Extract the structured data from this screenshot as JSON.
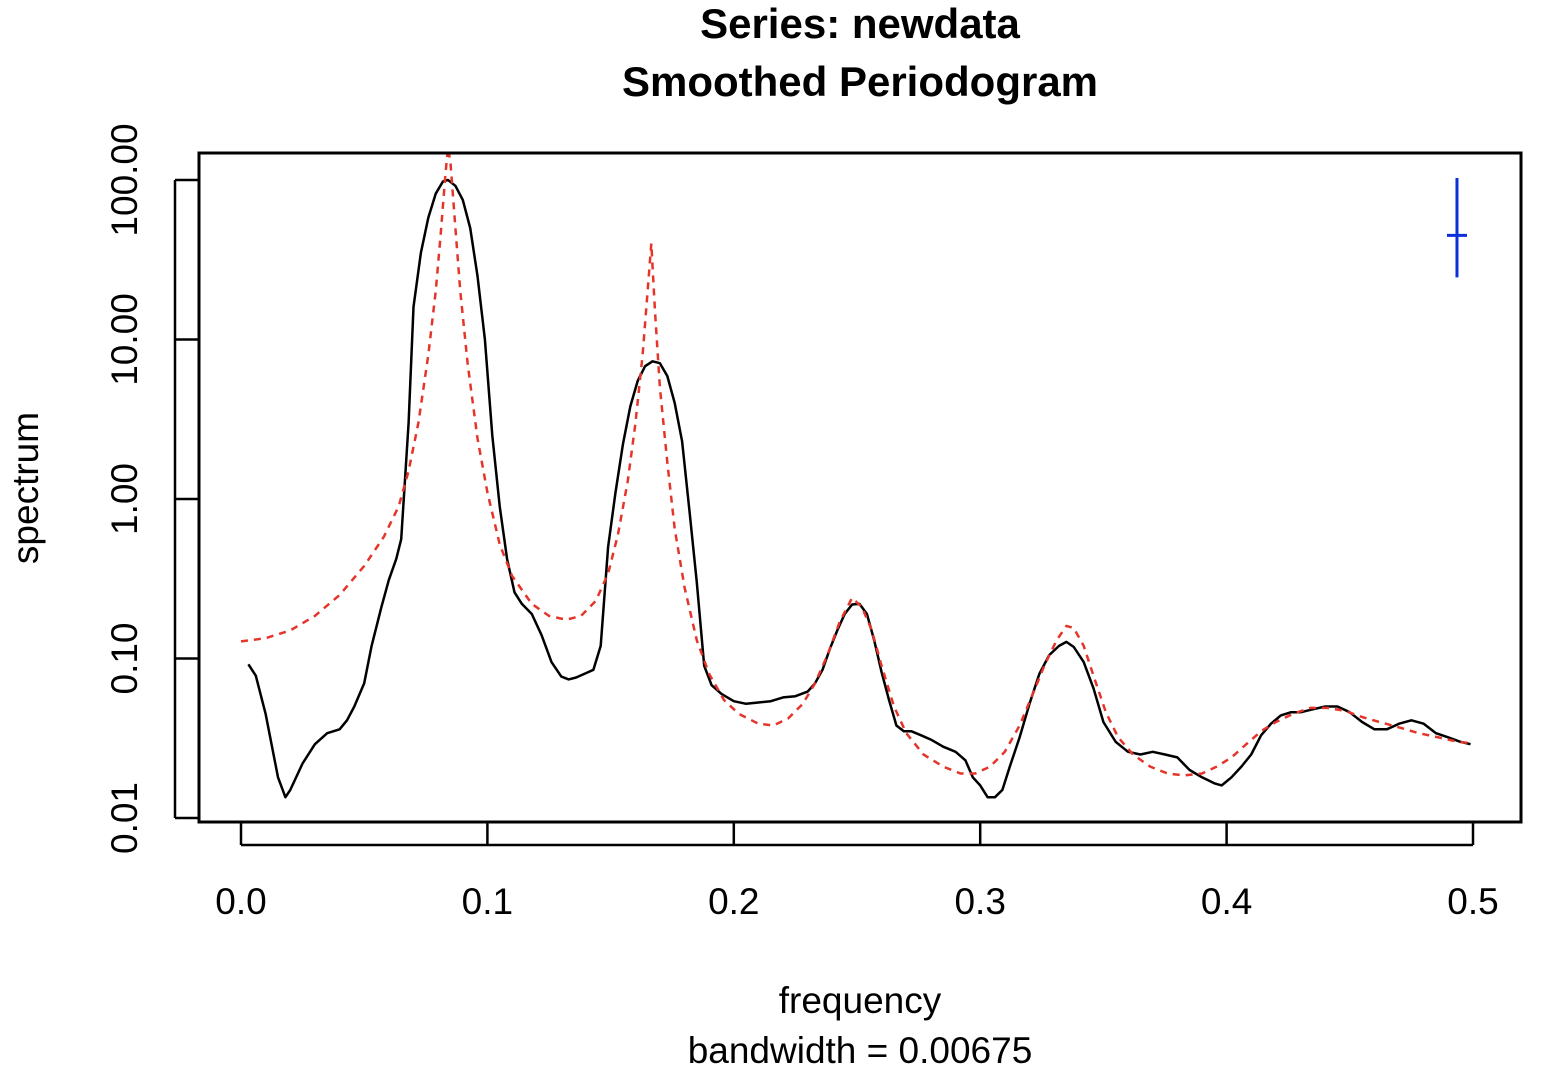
{
  "chart_data": {
    "type": "line",
    "title": "Series: newdata",
    "subtitle": "Smoothed Periodogram",
    "xlabel": "frequency",
    "sub": "bandwidth = 0.00675",
    "ylabel": "spectrum",
    "y_scale": "log10",
    "xlim": [
      0,
      0.5
    ],
    "ylim": [
      0.01,
      100
    ],
    "x_ticks": [
      {
        "value": 0.0,
        "label": "0.0"
      },
      {
        "value": 0.1,
        "label": "0.1"
      },
      {
        "value": 0.2,
        "label": "0.2"
      },
      {
        "value": 0.3,
        "label": "0.3"
      },
      {
        "value": 0.4,
        "label": "0.4"
      },
      {
        "value": 0.5,
        "label": "0.5"
      }
    ],
    "y_ticks": [
      {
        "value": 0.01,
        "label": "0.01"
      },
      {
        "value": 0.1,
        "label": "0.10"
      },
      {
        "value": 1,
        "label": "1.00"
      },
      {
        "value": 10,
        "label": "10.00"
      },
      {
        "value": 100,
        "label": "100.00"
      }
    ],
    "series": [
      {
        "style": "solid",
        "color": "#000000",
        "points": [
          [
            0.003,
            0.092
          ],
          [
            0.006,
            0.078
          ],
          [
            0.01,
            0.045
          ],
          [
            0.015,
            0.018
          ],
          [
            0.018,
            0.0135
          ],
          [
            0.02,
            0.015
          ],
          [
            0.025,
            0.022
          ],
          [
            0.03,
            0.029
          ],
          [
            0.035,
            0.034
          ],
          [
            0.04,
            0.036
          ],
          [
            0.043,
            0.041
          ],
          [
            0.046,
            0.05
          ],
          [
            0.05,
            0.07
          ],
          [
            0.053,
            0.12
          ],
          [
            0.057,
            0.21
          ],
          [
            0.06,
            0.31
          ],
          [
            0.063,
            0.42
          ],
          [
            0.065,
            0.56
          ],
          [
            0.068,
            3.0
          ],
          [
            0.07,
            16.0
          ],
          [
            0.073,
            35.0
          ],
          [
            0.076,
            58.0
          ],
          [
            0.079,
            82.0
          ],
          [
            0.082,
            98.0
          ],
          [
            0.084,
            100.0
          ],
          [
            0.087,
            92.0
          ],
          [
            0.09,
            75.0
          ],
          [
            0.093,
            50.0
          ],
          [
            0.096,
            25.0
          ],
          [
            0.099,
            10.0
          ],
          [
            0.102,
            2.5
          ],
          [
            0.105,
            0.9
          ],
          [
            0.108,
            0.42
          ],
          [
            0.111,
            0.26
          ],
          [
            0.114,
            0.22
          ],
          [
            0.118,
            0.19
          ],
          [
            0.122,
            0.14
          ],
          [
            0.126,
            0.095
          ],
          [
            0.13,
            0.077
          ],
          [
            0.133,
            0.074
          ],
          [
            0.136,
            0.076
          ],
          [
            0.14,
            0.081
          ],
          [
            0.143,
            0.085
          ],
          [
            0.146,
            0.12
          ],
          [
            0.149,
            0.5
          ],
          [
            0.152,
            1.1
          ],
          [
            0.155,
            2.2
          ],
          [
            0.158,
            3.8
          ],
          [
            0.161,
            5.5
          ],
          [
            0.164,
            6.8
          ],
          [
            0.167,
            7.3
          ],
          [
            0.17,
            7.1
          ],
          [
            0.173,
            5.9
          ],
          [
            0.176,
            4.0
          ],
          [
            0.179,
            2.3
          ],
          [
            0.182,
            0.85
          ],
          [
            0.185,
            0.3
          ],
          [
            0.188,
            0.09
          ],
          [
            0.191,
            0.068
          ],
          [
            0.195,
            0.06
          ],
          [
            0.2,
            0.054
          ],
          [
            0.205,
            0.052
          ],
          [
            0.21,
            0.053
          ],
          [
            0.215,
            0.054
          ],
          [
            0.22,
            0.057
          ],
          [
            0.225,
            0.058
          ],
          [
            0.23,
            0.062
          ],
          [
            0.233,
            0.07
          ],
          [
            0.236,
            0.085
          ],
          [
            0.239,
            0.115
          ],
          [
            0.242,
            0.15
          ],
          [
            0.245,
            0.19
          ],
          [
            0.248,
            0.218
          ],
          [
            0.251,
            0.22
          ],
          [
            0.254,
            0.19
          ],
          [
            0.257,
            0.13
          ],
          [
            0.26,
            0.082
          ],
          [
            0.263,
            0.055
          ],
          [
            0.266,
            0.038
          ],
          [
            0.269,
            0.035
          ],
          [
            0.272,
            0.035
          ],
          [
            0.276,
            0.033
          ],
          [
            0.28,
            0.031
          ],
          [
            0.285,
            0.028
          ],
          [
            0.29,
            0.026
          ],
          [
            0.294,
            0.023
          ],
          [
            0.297,
            0.018
          ],
          [
            0.3,
            0.016
          ],
          [
            0.303,
            0.0135
          ],
          [
            0.306,
            0.0135
          ],
          [
            0.309,
            0.015
          ],
          [
            0.312,
            0.021
          ],
          [
            0.316,
            0.032
          ],
          [
            0.32,
            0.052
          ],
          [
            0.324,
            0.08
          ],
          [
            0.328,
            0.105
          ],
          [
            0.332,
            0.12
          ],
          [
            0.335,
            0.127
          ],
          [
            0.338,
            0.118
          ],
          [
            0.342,
            0.095
          ],
          [
            0.346,
            0.065
          ],
          [
            0.35,
            0.04
          ],
          [
            0.355,
            0.03
          ],
          [
            0.36,
            0.026
          ],
          [
            0.365,
            0.025
          ],
          [
            0.37,
            0.026
          ],
          [
            0.375,
            0.025
          ],
          [
            0.38,
            0.024
          ],
          [
            0.385,
            0.02
          ],
          [
            0.39,
            0.018
          ],
          [
            0.395,
            0.0165
          ],
          [
            0.398,
            0.016
          ],
          [
            0.402,
            0.018
          ],
          [
            0.406,
            0.021
          ],
          [
            0.41,
            0.025
          ],
          [
            0.414,
            0.033
          ],
          [
            0.418,
            0.039
          ],
          [
            0.422,
            0.044
          ],
          [
            0.426,
            0.046
          ],
          [
            0.43,
            0.046
          ],
          [
            0.435,
            0.048
          ],
          [
            0.44,
            0.05
          ],
          [
            0.445,
            0.05
          ],
          [
            0.45,
            0.046
          ],
          [
            0.455,
            0.04
          ],
          [
            0.46,
            0.036
          ],
          [
            0.465,
            0.036
          ],
          [
            0.47,
            0.039
          ],
          [
            0.475,
            0.041
          ],
          [
            0.48,
            0.039
          ],
          [
            0.485,
            0.034
          ],
          [
            0.49,
            0.032
          ],
          [
            0.495,
            0.03
          ],
          [
            0.499,
            0.029
          ]
        ]
      },
      {
        "style": "dashed",
        "color": "#e5352b",
        "points": [
          [
            0.0,
            0.128
          ],
          [
            0.01,
            0.134
          ],
          [
            0.02,
            0.15
          ],
          [
            0.03,
            0.185
          ],
          [
            0.04,
            0.25
          ],
          [
            0.05,
            0.38
          ],
          [
            0.058,
            0.58
          ],
          [
            0.064,
            0.9
          ],
          [
            0.068,
            1.5
          ],
          [
            0.072,
            3.0
          ],
          [
            0.076,
            8.0
          ],
          [
            0.079,
            20.0
          ],
          [
            0.081,
            45.0
          ],
          [
            0.083,
            110.0
          ],
          [
            0.084,
            160.0
          ],
          [
            0.085,
            130.0
          ],
          [
            0.087,
            50.0
          ],
          [
            0.089,
            20.0
          ],
          [
            0.092,
            7.0
          ],
          [
            0.096,
            2.4
          ],
          [
            0.1,
            1.1
          ],
          [
            0.105,
            0.52
          ],
          [
            0.11,
            0.33
          ],
          [
            0.118,
            0.22
          ],
          [
            0.125,
            0.185
          ],
          [
            0.132,
            0.175
          ],
          [
            0.138,
            0.185
          ],
          [
            0.144,
            0.23
          ],
          [
            0.149,
            0.34
          ],
          [
            0.153,
            0.6
          ],
          [
            0.157,
            1.3
          ],
          [
            0.16,
            2.9
          ],
          [
            0.163,
            8.0
          ],
          [
            0.1655,
            25.0
          ],
          [
            0.1665,
            40.0
          ],
          [
            0.168,
            15.0
          ],
          [
            0.17,
            5.0
          ],
          [
            0.173,
            1.7
          ],
          [
            0.176,
            0.65
          ],
          [
            0.18,
            0.28
          ],
          [
            0.185,
            0.13
          ],
          [
            0.19,
            0.08
          ],
          [
            0.196,
            0.055
          ],
          [
            0.202,
            0.045
          ],
          [
            0.21,
            0.039
          ],
          [
            0.216,
            0.038
          ],
          [
            0.222,
            0.042
          ],
          [
            0.228,
            0.052
          ],
          [
            0.233,
            0.07
          ],
          [
            0.238,
            0.105
          ],
          [
            0.243,
            0.17
          ],
          [
            0.248,
            0.24
          ],
          [
            0.252,
            0.21
          ],
          [
            0.256,
            0.15
          ],
          [
            0.26,
            0.09
          ],
          [
            0.265,
            0.05
          ],
          [
            0.27,
            0.034
          ],
          [
            0.277,
            0.025
          ],
          [
            0.285,
            0.021
          ],
          [
            0.292,
            0.019
          ],
          [
            0.298,
            0.019
          ],
          [
            0.304,
            0.021
          ],
          [
            0.31,
            0.026
          ],
          [
            0.316,
            0.038
          ],
          [
            0.321,
            0.058
          ],
          [
            0.326,
            0.09
          ],
          [
            0.331,
            0.13
          ],
          [
            0.335,
            0.16
          ],
          [
            0.338,
            0.155
          ],
          [
            0.342,
            0.12
          ],
          [
            0.346,
            0.078
          ],
          [
            0.351,
            0.046
          ],
          [
            0.356,
            0.032
          ],
          [
            0.362,
            0.025
          ],
          [
            0.369,
            0.021
          ],
          [
            0.376,
            0.019
          ],
          [
            0.383,
            0.0185
          ],
          [
            0.39,
            0.019
          ],
          [
            0.396,
            0.021
          ],
          [
            0.402,
            0.024
          ],
          [
            0.408,
            0.029
          ],
          [
            0.414,
            0.035
          ],
          [
            0.42,
            0.04
          ],
          [
            0.427,
            0.045
          ],
          [
            0.434,
            0.049
          ],
          [
            0.441,
            0.049
          ],
          [
            0.448,
            0.047
          ],
          [
            0.455,
            0.043
          ],
          [
            0.462,
            0.04
          ],
          [
            0.47,
            0.037
          ],
          [
            0.478,
            0.034
          ],
          [
            0.486,
            0.032
          ],
          [
            0.494,
            0.03
          ],
          [
            0.499,
            0.0295
          ]
        ]
      }
    ],
    "ci_bar": {
      "x": 0.4935,
      "y_low": 24.5,
      "y_high": 103,
      "y_center": 45,
      "color": "#0b2fd9"
    }
  }
}
